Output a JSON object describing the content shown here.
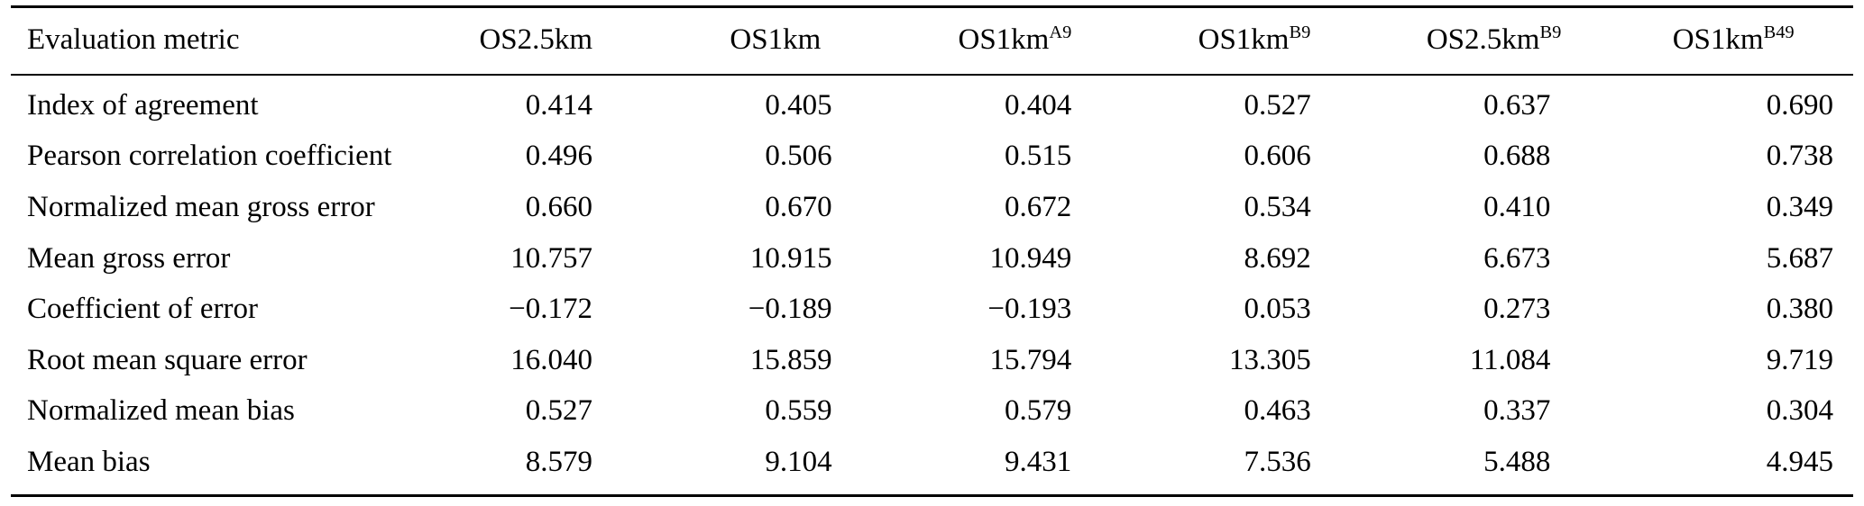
{
  "table": {
    "header_label": "Evaluation metric",
    "columns": [
      {
        "base": "OS2.5km",
        "sup": ""
      },
      {
        "base": "OS1km",
        "sup": ""
      },
      {
        "base": "OS1km",
        "sup": "A9"
      },
      {
        "base": "OS1km",
        "sup": "B9"
      },
      {
        "base": "OS2.5km",
        "sup": "B9"
      },
      {
        "base": "OS1km",
        "sup": "B49"
      }
    ],
    "rows": [
      {
        "metric": "Index of agreement",
        "values": [
          "0.414",
          "0.405",
          "0.404",
          "0.527",
          "0.637",
          "0.690"
        ]
      },
      {
        "metric": "Pearson correlation coefficient",
        "values": [
          "0.496",
          "0.506",
          "0.515",
          "0.606",
          "0.688",
          "0.738"
        ]
      },
      {
        "metric": "Normalized mean gross error",
        "values": [
          "0.660",
          "0.670",
          "0.672",
          "0.534",
          "0.410",
          "0.349"
        ]
      },
      {
        "metric": "Mean gross error",
        "values": [
          "10.757",
          "10.915",
          "10.949",
          "8.692",
          "6.673",
          "5.687"
        ]
      },
      {
        "metric": "Coefficient of error",
        "values": [
          "−0.172",
          "−0.189",
          "−0.193",
          "0.053",
          "0.273",
          "0.380"
        ]
      },
      {
        "metric": "Root mean square error",
        "values": [
          "16.040",
          "15.859",
          "15.794",
          "13.305",
          "11.084",
          "9.719"
        ]
      },
      {
        "metric": "Normalized mean bias",
        "values": [
          "0.527",
          "0.559",
          "0.579",
          "0.463",
          "0.337",
          "0.304"
        ]
      },
      {
        "metric": "Mean bias",
        "values": [
          "8.579",
          "9.104",
          "9.431",
          "7.536",
          "5.488",
          "4.945"
        ]
      }
    ]
  }
}
